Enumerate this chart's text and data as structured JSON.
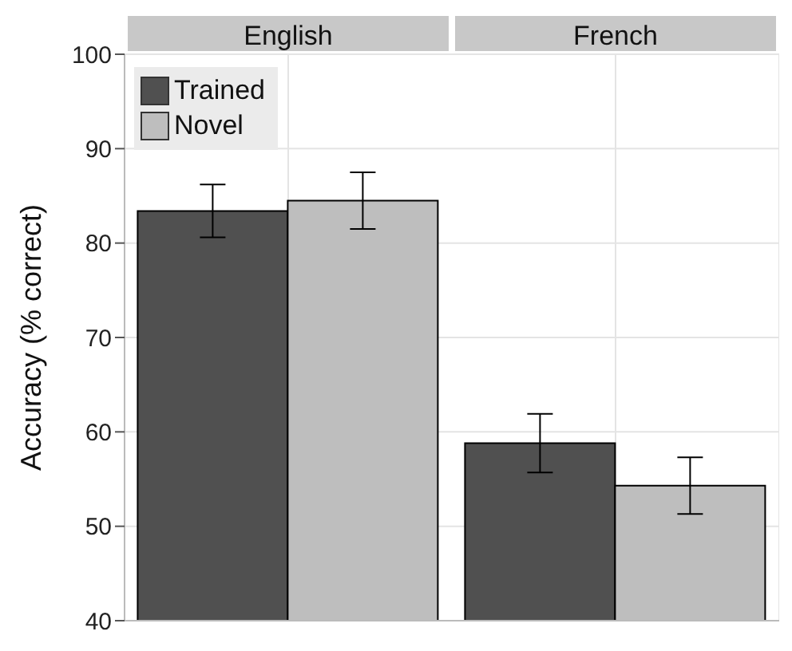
{
  "chart_data": {
    "type": "bar",
    "ylabel": "Accuracy (% correct)",
    "categories": [
      "English",
      "French"
    ],
    "ylim": [
      40,
      100
    ],
    "yticks": [
      40,
      50,
      60,
      70,
      80,
      90,
      100
    ],
    "grid": true,
    "legend": "top left",
    "series": [
      {
        "name": "Trained",
        "color": "#505050",
        "values": [
          83.4,
          58.8
        ],
        "errors": [
          2.8,
          3.1
        ]
      },
      {
        "name": "Novel",
        "color": "#bebebe",
        "values": [
          84.5,
          54.3
        ],
        "errors": [
          3.0,
          3.0
        ]
      }
    ]
  }
}
